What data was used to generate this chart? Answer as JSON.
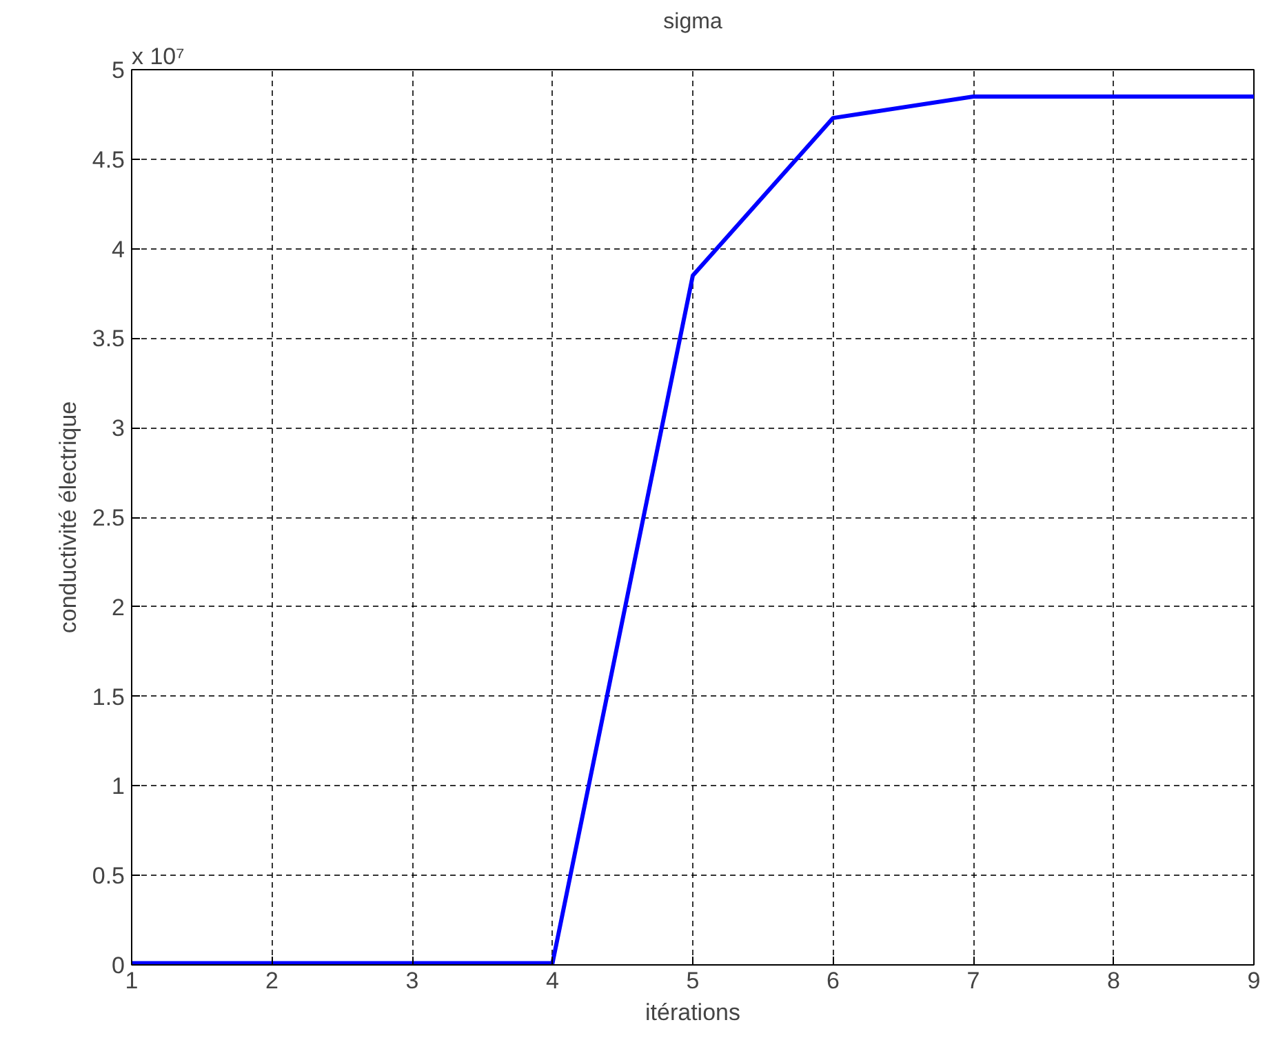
{
  "chart_data": {
    "type": "line",
    "title": "sigma",
    "xlabel": "itérations",
    "ylabel": "conductivité électrique",
    "annotations": [
      "x 10⁷"
    ],
    "x": [
      1,
      2,
      3,
      4,
      5,
      6,
      7,
      8,
      9
    ],
    "series": [
      {
        "color": "#0000ff",
        "values": [
          0.01,
          0.01,
          0.01,
          0.01,
          3.85,
          4.73,
          4.85,
          4.85,
          4.85
        ]
      }
    ],
    "xlim": [
      1,
      9
    ],
    "xticks": [
      1,
      2,
      3,
      4,
      5,
      6,
      7,
      8,
      9
    ],
    "ylim": [
      0,
      5
    ],
    "yticks": [
      0,
      0.5,
      1,
      1.5,
      2,
      2.5,
      3,
      3.5,
      4,
      4.5,
      5
    ],
    "grid": true,
    "marker": "none",
    "line_style": "solid"
  }
}
